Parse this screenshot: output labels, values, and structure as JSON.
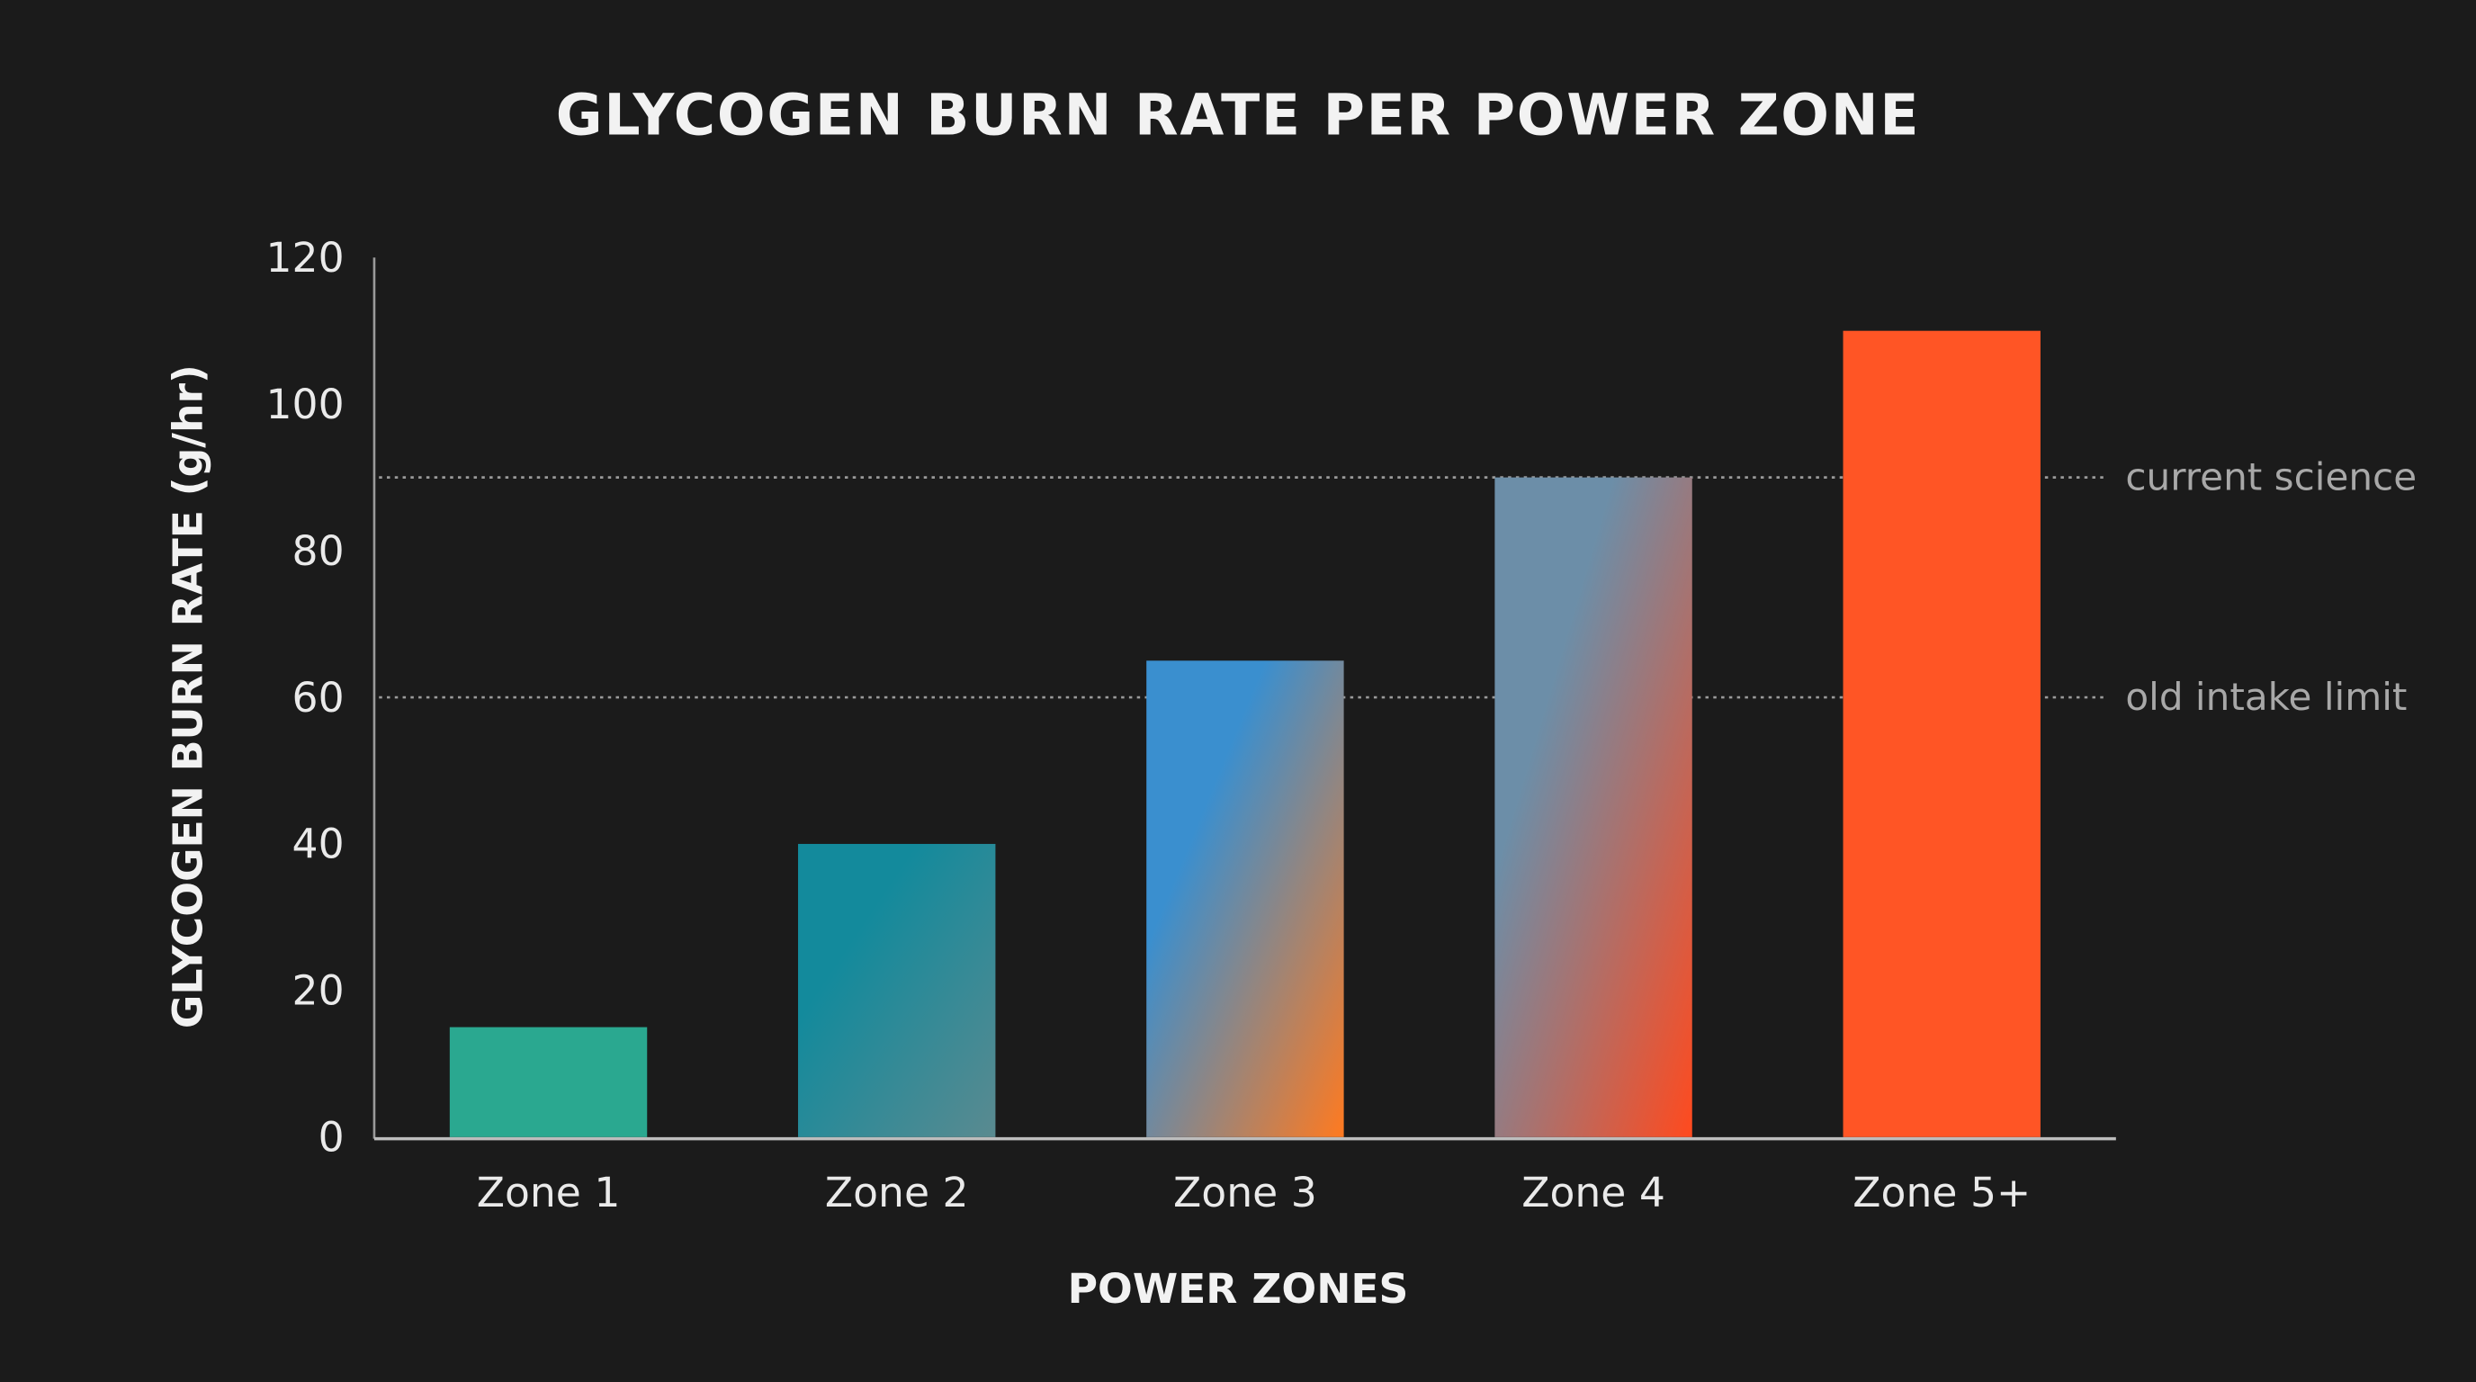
{
  "chart_data": {
    "type": "bar",
    "title": "GLYCOGEN BURN RATE PER POWER ZONE",
    "xlabel": "POWER ZONES",
    "ylabel": "GLYCOGEN BURN RATE (g/hr)",
    "categories": [
      "Zone 1",
      "Zone 2",
      "Zone 3",
      "Zone 4",
      "Zone 5+"
    ],
    "values": [
      15,
      40,
      65,
      90,
      110
    ],
    "ylim": [
      0,
      120
    ],
    "yticks": [
      "0",
      "20",
      "40",
      "60",
      "80",
      "100",
      "120"
    ],
    "grid": false,
    "reference_lines": [
      {
        "value": 90,
        "label": "current science"
      },
      {
        "value": 60,
        "label": "old intake limit"
      }
    ],
    "bar_colors": [
      [
        "#2aa890",
        "#2aa890"
      ],
      [
        "#138a9c",
        "#5a8a90"
      ],
      [
        "#3a8fcf",
        "#ff7a20"
      ],
      [
        "#6c8ea8",
        "#ff4a1e"
      ],
      [
        "#ff5525",
        "#ff5525"
      ]
    ],
    "background": "#1b1b1b"
  }
}
